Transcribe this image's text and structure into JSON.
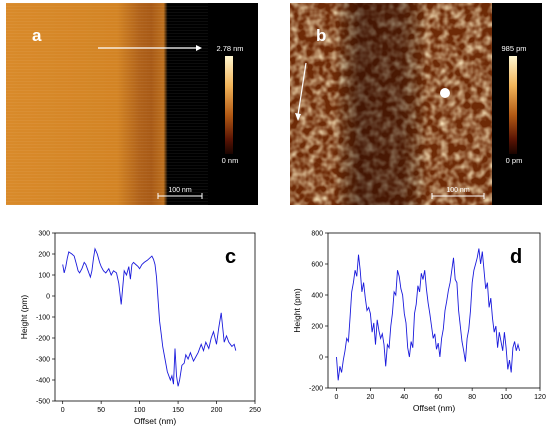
{
  "panels": {
    "a": {
      "letter": "a",
      "scalebar": "100 nm",
      "cbar_max": "2.78 nm",
      "cbar_min": "0 nm"
    },
    "b": {
      "letter": "b",
      "scalebar": "100 nm",
      "cbar_max": "985 pm",
      "cbar_min": "0 pm"
    }
  },
  "colors": {
    "line": "#1a1adc",
    "afm_dark": "#3a0c00",
    "afm_mid": "#c86a14",
    "afm_light": "#ffe6a8"
  },
  "chart_data": [
    {
      "type": "line",
      "letter": "c",
      "xlabel": "Offset (nm)",
      "ylabel": "Height (pm)",
      "xlim": [
        -10,
        250
      ],
      "ylim": [
        -500,
        300
      ],
      "xticks": [
        0,
        50,
        100,
        150,
        200,
        250
      ],
      "yticks": [
        -500,
        -400,
        -300,
        -200,
        -100,
        0,
        100,
        200,
        300
      ],
      "series": [
        {
          "x": [
            0,
            2,
            4,
            6,
            8,
            10,
            12,
            15,
            18,
            20,
            22,
            25,
            28,
            30,
            33,
            36,
            38,
            40,
            42,
            45,
            48,
            50,
            53,
            56,
            60,
            63,
            66,
            70,
            73,
            76,
            80,
            83,
            86,
            88,
            90,
            92,
            95,
            98,
            100,
            103,
            106,
            110,
            113,
            116,
            118,
            120,
            122,
            124,
            126,
            128,
            130,
            133,
            136,
            140,
            142,
            144,
            146,
            148,
            150,
            152,
            155,
            158,
            160,
            163,
            166,
            170,
            173,
            176,
            180,
            183,
            186,
            190,
            193,
            196,
            200,
            203,
            206,
            208,
            210,
            213,
            216,
            220,
            223,
            225
          ],
          "y": [
            150,
            110,
            140,
            180,
            210,
            205,
            200,
            190,
            150,
            120,
            110,
            130,
            160,
            150,
            120,
            90,
            120,
            180,
            225,
            200,
            160,
            140,
            120,
            110,
            130,
            100,
            120,
            110,
            60,
            -40,
            120,
            100,
            140,
            80,
            150,
            160,
            150,
            140,
            130,
            150,
            160,
            170,
            180,
            190,
            175,
            150,
            90,
            -20,
            -120,
            -180,
            -240,
            -300,
            -360,
            -400,
            -380,
            -420,
            -250,
            -380,
            -430,
            -400,
            -330,
            -320,
            -280,
            -300,
            -270,
            -310,
            -290,
            -270,
            -230,
            -260,
            -220,
            -250,
            -200,
            -170,
            -230,
            -150,
            -80,
            -150,
            -220,
            -190,
            -220,
            -240,
            -230,
            -260
          ]
        }
      ]
    },
    {
      "type": "line",
      "letter": "d",
      "xlabel": "Offset (nm)",
      "ylabel": "Height (pm)",
      "xlim": [
        -5,
        120
      ],
      "ylim": [
        -200,
        800
      ],
      "xticks": [
        0,
        20,
        40,
        60,
        80,
        100,
        120
      ],
      "yticks": [
        -200,
        0,
        200,
        400,
        600,
        800
      ],
      "series": [
        {
          "x": [
            0,
            1,
            2,
            3,
            4,
            5,
            6,
            7,
            8,
            9,
            10,
            11,
            12,
            13,
            14,
            15,
            16,
            17,
            18,
            19,
            20,
            21,
            22,
            23,
            24,
            25,
            26,
            27,
            28,
            29,
            30,
            31,
            32,
            33,
            34,
            35,
            36,
            37,
            38,
            39,
            40,
            41,
            42,
            43,
            44,
            45,
            46,
            47,
            48,
            49,
            50,
            51,
            52,
            53,
            54,
            55,
            56,
            57,
            58,
            59,
            60,
            61,
            62,
            63,
            64,
            65,
            66,
            67,
            68,
            69,
            70,
            71,
            72,
            73,
            74,
            75,
            76,
            77,
            78,
            79,
            80,
            81,
            82,
            83,
            84,
            85,
            86,
            87,
            88,
            89,
            90,
            91,
            92,
            93,
            94,
            95,
            96,
            97,
            98,
            99,
            100,
            101,
            102,
            103,
            104,
            105,
            106,
            107,
            108
          ],
          "y": [
            0,
            -150,
            -60,
            -100,
            -20,
            40,
            120,
            100,
            250,
            420,
            480,
            560,
            520,
            660,
            560,
            420,
            480,
            380,
            300,
            320,
            280,
            160,
            220,
            80,
            240,
            170,
            120,
            150,
            80,
            -60,
            80,
            60,
            200,
            280,
            420,
            400,
            560,
            520,
            440,
            400,
            280,
            220,
            60,
            0,
            100,
            60,
            280,
            340,
            460,
            420,
            540,
            500,
            560,
            440,
            350,
            280,
            200,
            120,
            150,
            50,
            90,
            0,
            120,
            180,
            300,
            360,
            430,
            480,
            560,
            640,
            500,
            480,
            300,
            200,
            100,
            40,
            -30,
            120,
            180,
            300,
            480,
            560,
            600,
            640,
            700,
            600,
            680,
            560,
            440,
            480,
            320,
            380,
            250,
            160,
            200,
            60,
            160,
            100,
            40,
            160,
            60,
            -80,
            -20,
            -100,
            60,
            100,
            40,
            80,
            40
          ]
        }
      ]
    }
  ]
}
